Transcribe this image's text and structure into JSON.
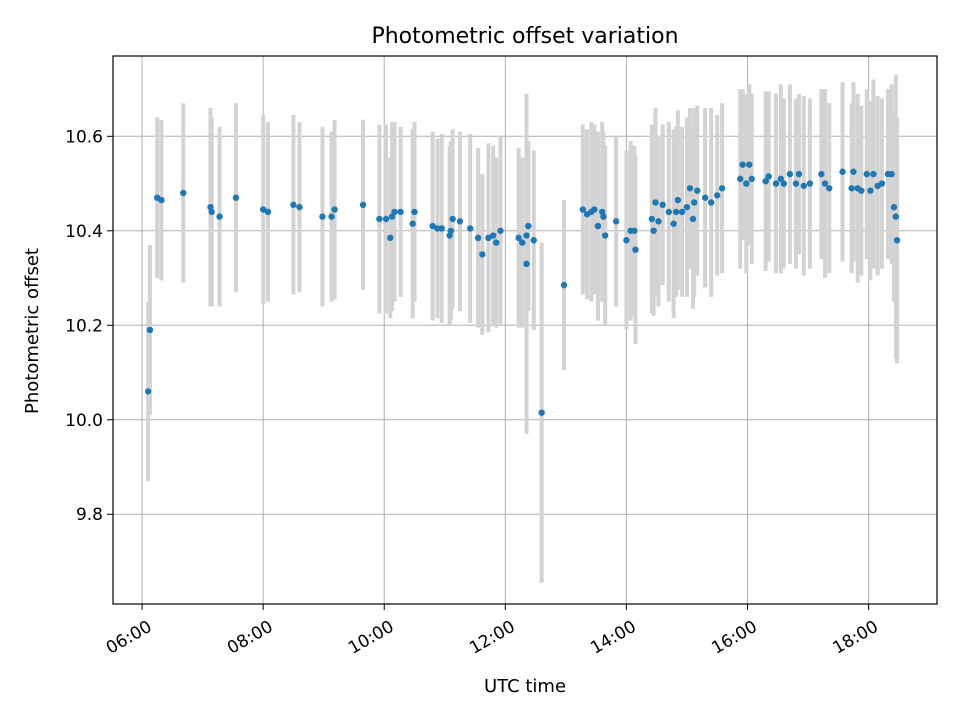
{
  "chart_data": {
    "type": "scatter",
    "title": "Photometric offset variation",
    "xlabel": "UTC time",
    "ylabel": "Photometric offset",
    "x_unit": "hours (UTC)",
    "xlim": [
      5.52,
      19.13
    ],
    "ylim": [
      9.61,
      10.77
    ],
    "x_ticks": [
      "06:00",
      "08:00",
      "10:00",
      "12:00",
      "14:00",
      "16:00",
      "18:00"
    ],
    "y_ticks": [
      "9.8",
      "10.0",
      "10.2",
      "10.4",
      "10.6"
    ],
    "grid": true,
    "colors": {
      "marker": "#1f77b4",
      "errorbar": "#d3d3d3",
      "grid": "#b0b0b0"
    },
    "x": [
      6.1,
      6.13,
      6.25,
      6.32,
      6.68,
      7.13,
      7.15,
      7.28,
      7.55,
      8.0,
      8.08,
      8.5,
      8.6,
      8.98,
      9.13,
      9.18,
      9.65,
      9.92,
      10.03,
      10.1,
      10.13,
      10.17,
      10.27,
      10.47,
      10.5,
      10.8,
      10.88,
      10.95,
      11.08,
      11.1,
      11.13,
      11.25,
      11.42,
      11.55,
      11.62,
      11.72,
      11.8,
      11.85,
      11.92,
      12.22,
      12.28,
      12.35,
      12.35,
      12.38,
      12.47,
      12.6,
      12.97,
      13.28,
      13.35,
      13.42,
      13.47,
      13.53,
      13.6,
      13.62,
      13.65,
      13.83,
      14.0,
      14.07,
      14.13,
      14.15,
      14.42,
      14.45,
      14.48,
      14.53,
      14.6,
      14.7,
      14.78,
      14.82,
      14.85,
      14.92,
      15.0,
      15.05,
      15.1,
      15.12,
      15.17,
      15.3,
      15.4,
      15.5,
      15.58,
      15.88,
      15.92,
      15.98,
      16.03,
      16.07,
      16.3,
      16.35,
      16.47,
      16.55,
      16.6,
      16.7,
      16.8,
      16.85,
      16.93,
      17.03,
      17.22,
      17.28,
      17.35,
      17.57,
      17.72,
      17.75,
      17.82,
      17.88,
      17.97,
      18.03,
      18.08,
      18.15,
      18.22,
      18.32,
      18.38,
      18.42,
      18.45,
      18.47
    ],
    "y": [
      10.06,
      10.19,
      10.47,
      10.465,
      10.48,
      10.45,
      10.44,
      10.43,
      10.47,
      10.445,
      10.44,
      10.455,
      10.45,
      10.43,
      10.43,
      10.445,
      10.455,
      10.425,
      10.425,
      10.385,
      10.43,
      10.44,
      10.44,
      10.415,
      10.44,
      10.41,
      10.405,
      10.405,
      10.39,
      10.4,
      10.425,
      10.42,
      10.405,
      10.385,
      10.35,
      10.385,
      10.39,
      10.375,
      10.4,
      10.385,
      10.375,
      10.39,
      10.33,
      10.41,
      10.38,
      10.015,
      10.285,
      10.445,
      10.435,
      10.44,
      10.445,
      10.41,
      10.44,
      10.43,
      10.39,
      10.42,
      10.38,
      10.4,
      10.4,
      10.36,
      10.425,
      10.4,
      10.46,
      10.42,
      10.455,
      10.44,
      10.415,
      10.44,
      10.465,
      10.44,
      10.45,
      10.49,
      10.425,
      10.46,
      10.485,
      10.47,
      10.46,
      10.475,
      10.49,
      10.51,
      10.54,
      10.5,
      10.54,
      10.51,
      10.505,
      10.515,
      10.5,
      10.51,
      10.5,
      10.52,
      10.5,
      10.52,
      10.495,
      10.5,
      10.52,
      10.5,
      10.49,
      10.525,
      10.49,
      10.525,
      10.49,
      10.485,
      10.52,
      10.485,
      10.52,
      10.495,
      10.5,
      10.52,
      10.52,
      10.45,
      10.43,
      10.38
    ],
    "err": [
      0.19,
      0.18,
      0.17,
      0.17,
      0.19,
      0.21,
      0.2,
      0.19,
      0.2,
      0.2,
      0.19,
      0.19,
      0.18,
      0.19,
      0.18,
      0.19,
      0.18,
      0.2,
      0.2,
      0.17,
      0.2,
      0.19,
      0.18,
      0.2,
      0.19,
      0.2,
      0.19,
      0.2,
      0.19,
      0.19,
      0.19,
      0.19,
      0.2,
      0.19,
      0.17,
      0.2,
      0.19,
      0.18,
      0.2,
      0.19,
      0.18,
      0.19,
      0.36,
      0.18,
      0.19,
      0.36,
      0.18,
      0.18,
      0.18,
      0.19,
      0.18,
      0.2,
      0.19,
      0.18,
      0.19,
      0.18,
      0.19,
      0.19,
      0.18,
      0.2,
      0.2,
      0.18,
      0.2,
      0.18,
      0.17,
      0.19,
      0.2,
      0.18,
      0.19,
      0.18,
      0.19,
      0.17,
      0.19,
      0.2,
      0.18,
      0.19,
      0.2,
      0.17,
      0.18,
      0.19,
      0.16,
      0.19,
      0.17,
      0.18,
      0.19,
      0.18,
      0.19,
      0.2,
      0.18,
      0.19,
      0.18,
      0.17,
      0.19,
      0.18,
      0.18,
      0.2,
      0.18,
      0.19,
      0.18,
      0.19,
      0.2,
      0.18,
      0.18,
      0.19,
      0.2,
      0.19,
      0.18,
      0.18,
      0.19,
      0.2,
      0.3,
      0.26
    ]
  }
}
